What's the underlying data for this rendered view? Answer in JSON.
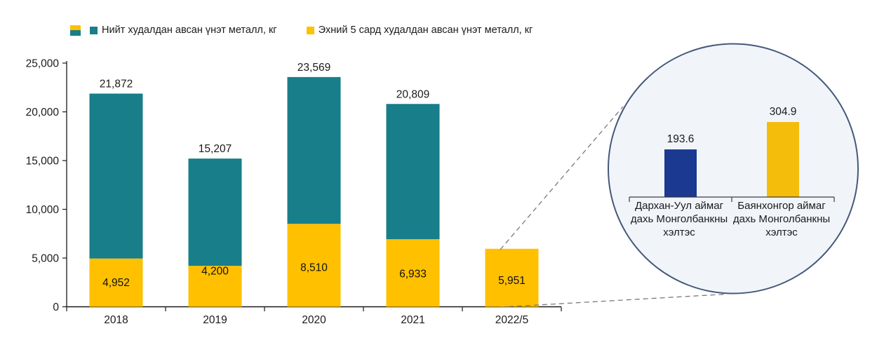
{
  "colors": {
    "teal": "#177E8A",
    "yellow": "#FFC000",
    "inset_blue": "#1B3991",
    "inset_yellow": "#F4BD0C",
    "axis": "#1a1a1a",
    "label_text": "#1a1a1a"
  },
  "legend": {
    "stacked_swatch_colors": [
      "#FFC000",
      "#177E8A"
    ],
    "items": [
      {
        "label": "Нийт худалдан авсан үнэт металл, кг",
        "color": "#177E8A"
      },
      {
        "label": "Эхний 5 сард худалдан авсан үнэт металл, кг",
        "color": "#FFC000"
      }
    ]
  },
  "chart_data": [
    {
      "name": "main-stacked-bar-chart",
      "type": "bar",
      "subtype": "stacked",
      "title": "",
      "categories": [
        "2018",
        "2019",
        "2020",
        "2021",
        "2022/5"
      ],
      "series": [
        {
          "name": "Эхний 5 сард худалдан авсан үнэт металл, кг",
          "color": "#FFC000",
          "values": [
            4952,
            4200,
            8510,
            6933,
            5951
          ]
        },
        {
          "name": "Нийт худалдан авсан үнэт металл, кг",
          "color": "#177E8A",
          "role": "total",
          "values": [
            21872,
            15207,
            23569,
            20809,
            5951
          ]
        }
      ],
      "total_labels": [
        "21,872",
        "15,207",
        "23,569",
        "20,809",
        ""
      ],
      "inner_labels": [
        "4,952",
        "4,200",
        "8,510",
        "6,933",
        "5,951"
      ],
      "inner_label_dy": [
        0,
        -22,
        3,
        1,
        4
      ],
      "xlabel": "",
      "ylabel": "",
      "ylim": [
        0,
        25000
      ],
      "ytick_labels": [
        "0",
        "5,000",
        "10,000",
        "15,000",
        "20,000",
        "25,000"
      ],
      "grid": false,
      "legend_position": "top"
    },
    {
      "name": "inset-magnified-bar-chart",
      "type": "bar",
      "title": "",
      "categories": [
        "Дархан-Уул аймаг дахь Монголбанкны хэлтэс",
        "Баянхонгор аймаг дахь Монголбанкны хэлтэс"
      ],
      "category_lines": [
        [
          "Дархан-Уул аймаг",
          "дахь Монголбанкны",
          "хэлтэс"
        ],
        [
          "Баянхонгор аймаг",
          "дахь Монголбанкны",
          "хэлтэс"
        ]
      ],
      "values": [
        193.6,
        304.9
      ],
      "value_labels": [
        "193.6",
        "304.9"
      ],
      "bar_colors": [
        "#1B3991",
        "#F4BD0C"
      ],
      "ylim": [
        0,
        310
      ],
      "grid": false
    }
  ],
  "annotations": {
    "magnifier_circle": {
      "fill": "#F1F5FA",
      "border": "#46597A"
    },
    "connector_style": "dashed",
    "connector_color": "#7a7a7a"
  }
}
